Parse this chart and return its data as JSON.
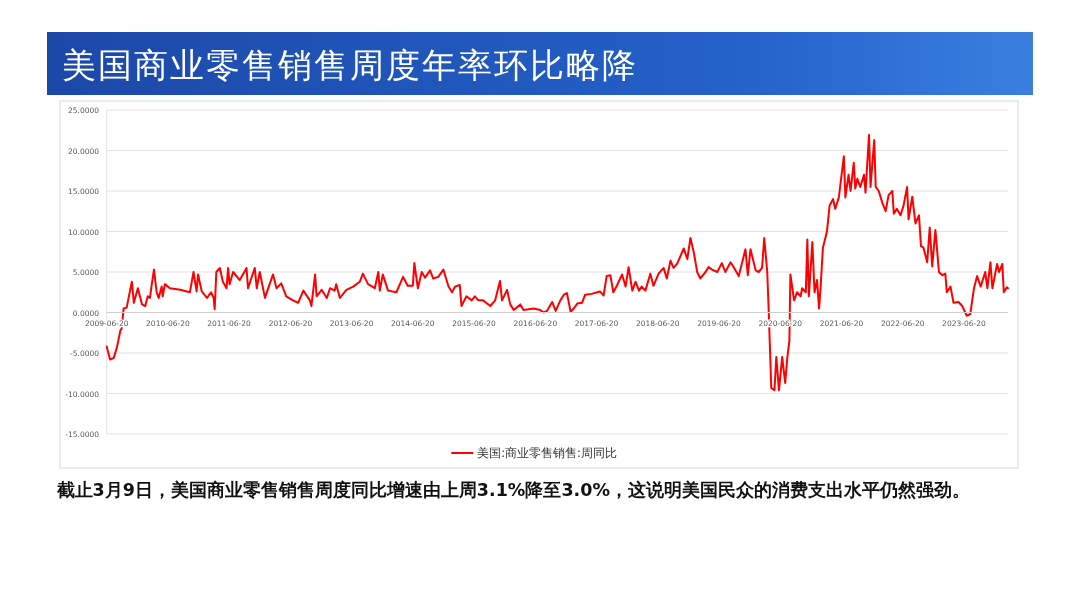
{
  "chart_data": {
    "type": "line",
    "title": "美国商业零售销售周度年率环比略降",
    "annotations": [
      "截止3月9日，美国商业零售销售周度同比增速由上周3.1%降至3.0%，这说明美国民众的消费支出水平仍然强劲。"
    ],
    "xlim": [
      "2009-06-20",
      "2024-03-09"
    ],
    "xticks": [
      "2009-06-20",
      "2010-06-20",
      "2011-06-20",
      "2012-06-20",
      "2013-06-20",
      "2014-06-20",
      "2015-06-20",
      "2016-06-20",
      "2017-06-20",
      "2018-06-20",
      "2019-06-20",
      "2020-06-20",
      "2021-06-20",
      "2022-06-20",
      "2023-06-20"
    ],
    "ylim": [
      -15,
      25
    ],
    "yticks": [
      {
        "value": 25,
        "label": "25.0000"
      },
      {
        "value": 20,
        "label": "20.0000"
      },
      {
        "value": 15,
        "label": "15.0000"
      },
      {
        "value": 10,
        "label": "10.0000"
      },
      {
        "value": 5,
        "label": "5.0000"
      },
      {
        "value": 0,
        "label": "0.0000"
      },
      {
        "value": -5,
        "label": "-5.0000"
      },
      {
        "value": -10,
        "label": "-10.0000"
      },
      {
        "value": -15,
        "label": "-15.0000"
      }
    ],
    "grid": "y",
    "legend": "bottom",
    "line_style": "solid",
    "series": [
      {
        "name": "美国:商业零售销售:周同比",
        "color": "#ff0000",
        "x": [
          "2009-06-20",
          "2009-07-10",
          "2009-08-01",
          "2009-08-20",
          "2009-09-10",
          "2009-09-17",
          "2009-09-29",
          "2009-10-17",
          "2009-11-17",
          "2009-11-29",
          "2009-12-23",
          "2010-01-17",
          "2010-02-05",
          "2010-02-20",
          "2010-03-05",
          "2010-03-14",
          "2010-03-29",
          "2010-04-14",
          "2010-04-26",
          "2010-05-14",
          "2010-05-20",
          "2010-06-02",
          "2010-07-02",
          "2010-09-02",
          "2010-10-29",
          "2010-11-20",
          "2010-12-08",
          "2010-12-17",
          "2011-01-08",
          "2011-02-08",
          "2011-03-05",
          "2011-03-20",
          "2011-03-26",
          "2011-04-05",
          "2011-04-26",
          "2011-05-14",
          "2011-06-05",
          "2011-06-14",
          "2011-06-23",
          "2011-07-14",
          "2011-08-23",
          "2011-10-02",
          "2011-10-11",
          "2011-11-20",
          "2011-12-02",
          "2011-12-20",
          "2012-01-20",
          "2012-03-08",
          "2012-03-29",
          "2012-04-26",
          "2012-05-26",
          "2012-07-05",
          "2012-08-05",
          "2012-09-05",
          "2012-10-14",
          "2012-10-23",
          "2012-11-14",
          "2012-11-23",
          "2012-12-23",
          "2013-01-23",
          "2013-02-11",
          "2013-03-11",
          "2013-03-20",
          "2013-04-11",
          "2013-05-20",
          "2013-06-29",
          "2013-08-08",
          "2013-08-26",
          "2013-09-26",
          "2013-11-05",
          "2013-11-26",
          "2013-12-05",
          "2013-12-23",
          "2014-01-23",
          "2014-03-14",
          "2014-04-23",
          "2014-05-20",
          "2014-06-20",
          "2014-06-29",
          "2014-07-20",
          "2014-08-12",
          "2014-09-01",
          "2014-10-01",
          "2014-10-19",
          "2014-11-19",
          "2014-12-19",
          "2015-01-19",
          "2015-02-09",
          "2015-02-27",
          "2015-03-27",
          "2015-04-06",
          "2015-05-06",
          "2015-06-06",
          "2015-06-25",
          "2015-07-16",
          "2015-08-13",
          "2015-09-25",
          "2015-10-24",
          "2015-11-22",
          "2015-12-04",
          "2016-01-03",
          "2016-01-22",
          "2016-02-12",
          "2016-03-22",
          "2016-04-10",
          "2016-06-10",
          "2016-07-19",
          "2016-08-09",
          "2016-08-28",
          "2016-09-28",
          "2016-10-19",
          "2016-11-16",
          "2016-12-07",
          "2016-12-25",
          "2017-01-16",
          "2017-02-04",
          "2017-02-25",
          "2017-03-25",
          "2017-04-13",
          "2017-05-22",
          "2017-07-10",
          "2017-08-01",
          "2017-08-19",
          "2017-09-10",
          "2017-09-28",
          "2017-10-19",
          "2017-11-19",
          "2017-12-10",
          "2017-12-28",
          "2018-01-19",
          "2018-02-07",
          "2018-02-28",
          "2018-03-16",
          "2018-04-07",
          "2018-05-07",
          "2018-05-25",
          "2018-06-25",
          "2018-07-25",
          "2018-08-13",
          "2018-09-04",
          "2018-09-22",
          "2018-10-13",
          "2018-11-22",
          "2018-12-13",
          "2019-01-01",
          "2019-01-22",
          "2019-02-10",
          "2019-03-01",
          "2019-04-01",
          "2019-04-19",
          "2019-05-10",
          "2019-06-10",
          "2019-07-07",
          "2019-07-28",
          "2019-08-28",
          "2019-09-16",
          "2019-10-16",
          "2019-11-25",
          "2019-12-09",
          "2019-12-25",
          "2020-01-25",
          "2020-02-12",
          "2020-03-03",
          "2020-03-16",
          "2020-04-03",
          "2020-04-12",
          "2020-04-27",
          "2020-05-16",
          "2020-05-27",
          "2020-06-12",
          "2020-07-01",
          "2020-07-19",
          "2020-08-01",
          "2020-08-13",
          "2020-08-19",
          "2020-09-10",
          "2020-09-28",
          "2020-10-19",
          "2020-10-28",
          "2020-11-19",
          "2020-11-28",
          "2020-12-07",
          "2020-12-28",
          "2021-01-10",
          "2021-01-25",
          "2021-02-06",
          "2021-02-15",
          "2021-03-01",
          "2021-03-25",
          "2021-04-10",
          "2021-05-01",
          "2021-05-13",
          "2021-06-04",
          "2021-07-04",
          "2021-07-13",
          "2021-08-01",
          "2021-08-13",
          "2021-09-01",
          "2021-09-10",
          "2021-09-22",
          "2021-10-10",
          "2021-11-01",
          "2021-11-10",
          "2021-12-01",
          "2021-12-10",
          "2022-01-01",
          "2022-01-10",
          "2022-01-28",
          "2022-02-19",
          "2022-03-10",
          "2022-03-28",
          "2022-04-19",
          "2022-04-28",
          "2022-05-16",
          "2022-06-07",
          "2022-06-25",
          "2022-07-16",
          "2022-07-25",
          "2022-08-16",
          "2022-09-04",
          "2022-09-25",
          "2022-10-07",
          "2022-10-22",
          "2022-11-13",
          "2022-11-28",
          "2022-12-13",
          "2023-01-01",
          "2023-01-22",
          "2023-02-12",
          "2023-03-01",
          "2023-03-10",
          "2023-04-01",
          "2023-04-19",
          "2023-05-19",
          "2023-06-10",
          "2023-07-07",
          "2023-07-28",
          "2023-08-19",
          "2023-09-07",
          "2023-09-28",
          "2023-10-25",
          "2023-11-07",
          "2023-11-25",
          "2023-12-07",
          "2024-01-04",
          "2024-01-16",
          "2024-02-04",
          "2024-02-13",
          "2024-03-02",
          "2024-03-09"
        ],
        "values": [
          -4.2,
          -5.8,
          -5.6,
          -4.3,
          -2.2,
          -2.0,
          0.5,
          0.6,
          3.8,
          1.2,
          3.0,
          1.0,
          0.8,
          2.0,
          1.8,
          3.2,
          5.3,
          2.5,
          1.8,
          3.2,
          2.0,
          3.5,
          3.0,
          2.8,
          2.5,
          5.0,
          2.6,
          4.7,
          2.6,
          1.8,
          2.5,
          1.8,
          0.4,
          5.0,
          5.5,
          3.8,
          3.0,
          5.5,
          3.5,
          5.0,
          4.0,
          5.5,
          3.0,
          5.5,
          3.0,
          5.0,
          1.8,
          4.7,
          3.0,
          3.6,
          2.0,
          1.5,
          1.2,
          2.7,
          1.5,
          0.8,
          4.7,
          2.0,
          2.8,
          1.8,
          3.0,
          2.7,
          3.5,
          1.8,
          2.8,
          3.2,
          3.8,
          4.8,
          3.5,
          3.0,
          5.0,
          2.7,
          4.7,
          2.7,
          2.5,
          4.4,
          3.3,
          3.3,
          6.1,
          3.0,
          5.0,
          4.3,
          5.2,
          4.2,
          4.4,
          5.3,
          3.2,
          2.5,
          3.2,
          3.4,
          0.8,
          2.0,
          1.5,
          2.0,
          1.5,
          1.5,
          0.8,
          1.5,
          3.9,
          1.5,
          2.8,
          1.0,
          0.3,
          1.0,
          0.3,
          0.5,
          0.3,
          0.0,
          0.2,
          1.3,
          0.2,
          1.5,
          2.2,
          2.4,
          0.1,
          0.5,
          1.1,
          1.2,
          2.2,
          2.3,
          2.6,
          2.1,
          4.5,
          4.6,
          2.5,
          3.3,
          4.7,
          3.2,
          5.6,
          2.7,
          3.8,
          2.7,
          3.2,
          2.7,
          4.8,
          3.3,
          4.8,
          5.5,
          4.2,
          6.4,
          5.5,
          6.0,
          7.9,
          6.6,
          9.2,
          7.3,
          5.0,
          4.2,
          5.0,
          5.6,
          5.3,
          5.0,
          6.1,
          5.0,
          6.2,
          5.6,
          4.5,
          7.8,
          4.6,
          7.8,
          5.2,
          5.0,
          5.5,
          9.2,
          5.0,
          0.0,
          -9.3,
          -9.6,
          -5.5,
          -9.6,
          -5.5,
          -8.7,
          -5.5,
          -3.5,
          4.7,
          1.5,
          2.5,
          2.0,
          3.0,
          2.5,
          9.0,
          2.0,
          8.7,
          2.5,
          4.0,
          0.5,
          3.0,
          8.0,
          10.0,
          13.2,
          14.0,
          12.8,
          14.2,
          19.3,
          14.2,
          17.0,
          15.0,
          18.5,
          15.3,
          16.5,
          15.5,
          17.0,
          14.8,
          21.9,
          15.5,
          21.3,
          15.5,
          15.0,
          13.5,
          12.5,
          14.5,
          15.0,
          12.2,
          12.8,
          12.0,
          13.2,
          15.5,
          11.5,
          14.3,
          11.0,
          12.0,
          8.2,
          8.0,
          6.2,
          10.5,
          5.7,
          10.2,
          5.0,
          4.6,
          4.8,
          2.5,
          3.2,
          1.2,
          1.3,
          0.8,
          -0.4,
          -0.2,
          3.0,
          4.5,
          3.2,
          5.0,
          3.0,
          6.2,
          3.0,
          6.0,
          5.0,
          6.0,
          2.5,
          3.1,
          3.0
        ]
      }
    ]
  }
}
